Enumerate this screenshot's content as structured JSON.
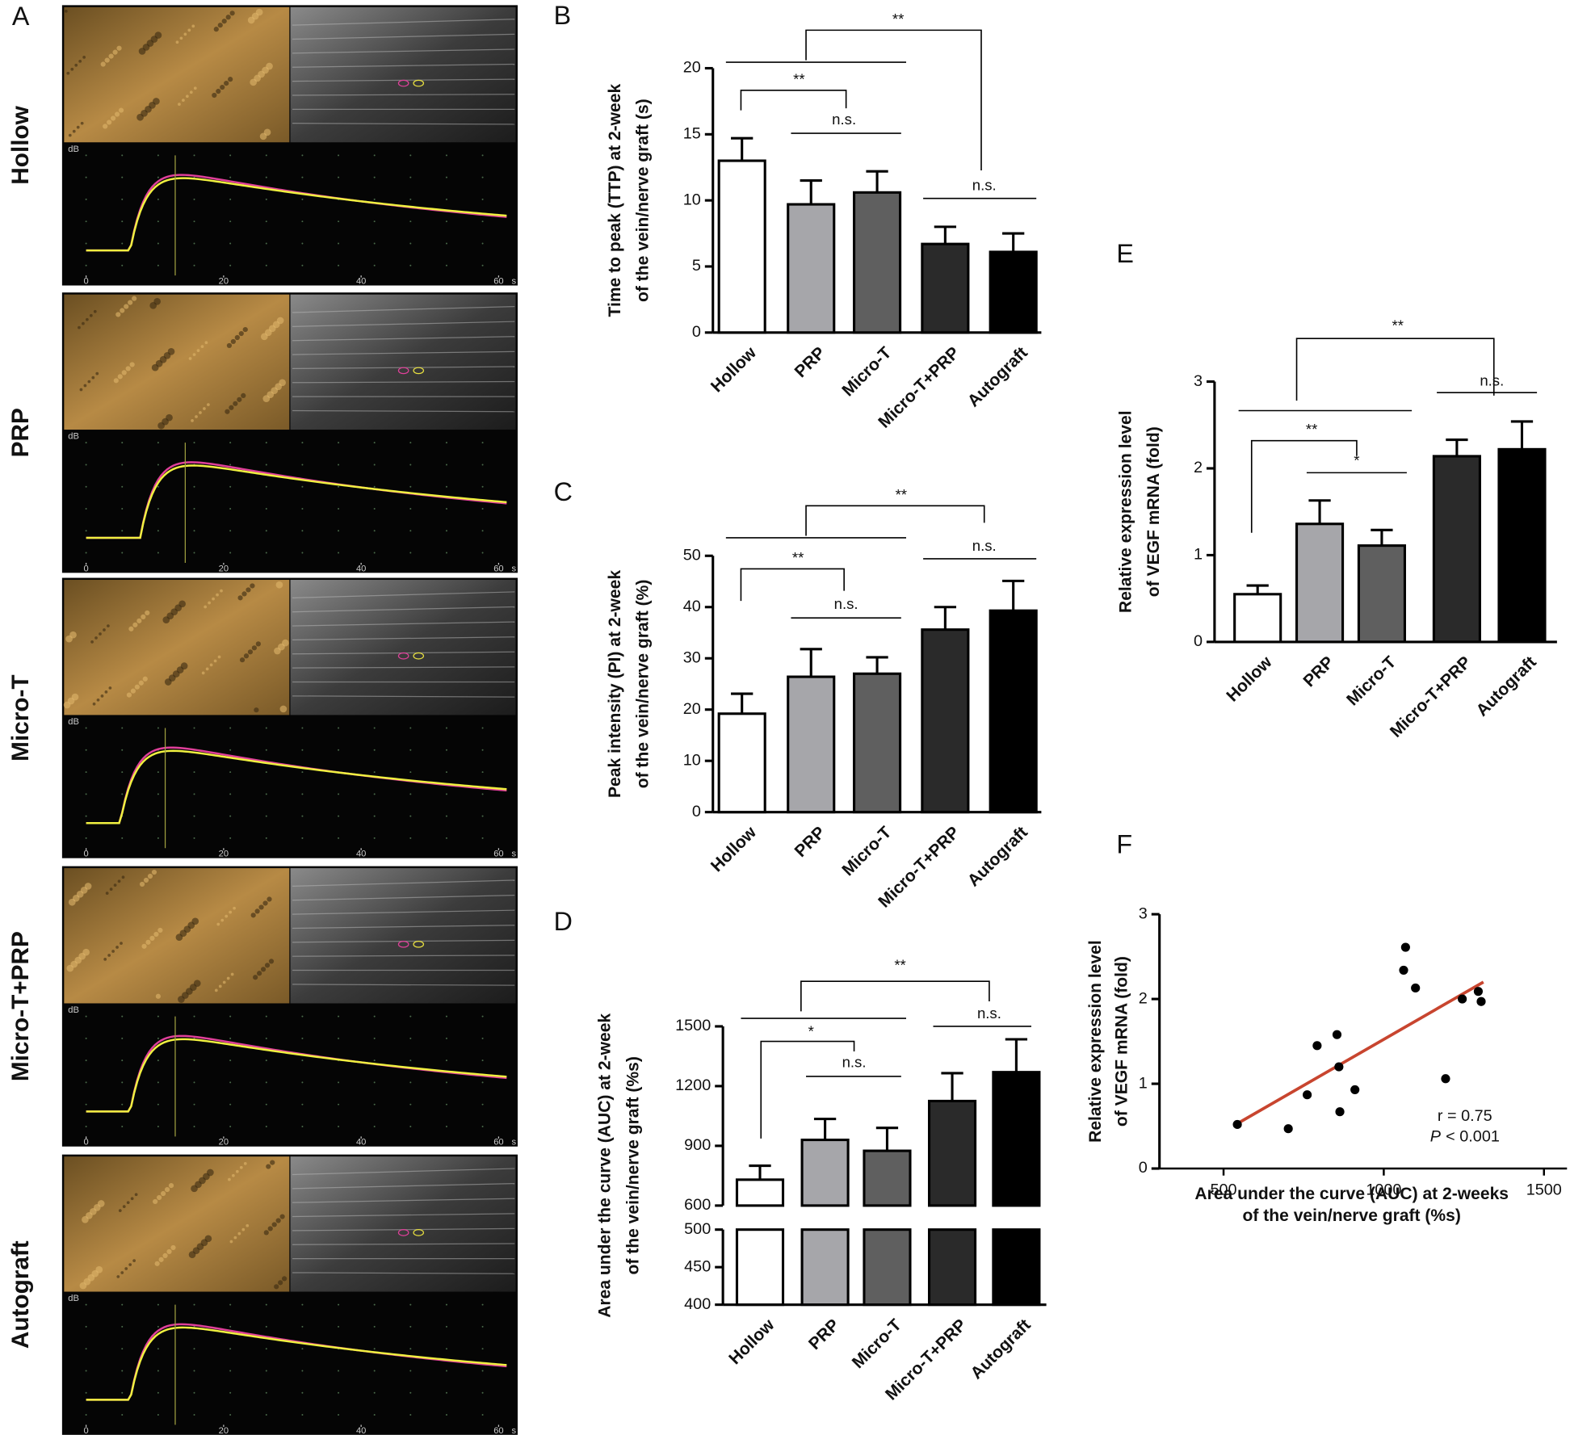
{
  "panel_a": {
    "letter": "A",
    "rows": [
      "Hollow",
      "PRP",
      "Micro-T",
      "Micro-T+PRP",
      "Autograft"
    ],
    "time_ticks": [
      0,
      20,
      40,
      60
    ],
    "time_unit": "s",
    "intensity_unit": "dB"
  },
  "chart_data": [
    {
      "type": "bar",
      "panel": "B",
      "ylabel": [
        "Time to peak (TTP) at 2-week",
        "of the vein/nerve graft (s)"
      ],
      "categories": [
        "Hollow",
        "PRP",
        "Micro-T",
        "Micro-T+PRP",
        "Autograft"
      ],
      "values": [
        13.0,
        9.7,
        10.6,
        6.7,
        6.1
      ],
      "errors": [
        1.7,
        1.8,
        1.6,
        1.3,
        1.4
      ],
      "colors": [
        "#ffffff",
        "#a6a6aa",
        "#5f5f5f",
        "#2a2a2a",
        "#000000"
      ],
      "ylim": [
        0,
        20
      ],
      "yticks": [
        0,
        5,
        10,
        15,
        20
      ],
      "annotations": [
        "**",
        "**",
        "n.s.",
        "n.s."
      ]
    },
    {
      "type": "bar",
      "panel": "C",
      "ylabel": [
        "Peak intensity (PI) at 2-week",
        "of the vein/nerve graft (%)"
      ],
      "categories": [
        "Hollow",
        "PRP",
        "Micro-T",
        "Micro-T+PRP",
        "Autograft"
      ],
      "values": [
        19.2,
        26.4,
        27.0,
        35.6,
        39.3
      ],
      "errors": [
        3.9,
        5.4,
        3.2,
        4.4,
        5.8
      ],
      "colors": [
        "#ffffff",
        "#a6a6aa",
        "#5f5f5f",
        "#2a2a2a",
        "#000000"
      ],
      "ylim": [
        0,
        50
      ],
      "yticks": [
        0,
        10,
        20,
        30,
        40,
        50
      ],
      "annotations": [
        "**",
        "**",
        "n.s.",
        "n.s."
      ]
    },
    {
      "type": "bar",
      "panel": "D",
      "ylabel": [
        "Area under the curve (AUC) at 2-week",
        "of the vein/nerve graft (%s)"
      ],
      "categories": [
        "Hollow",
        "PRP",
        "Micro-T",
        "Micro-T+PRP",
        "Autograft"
      ],
      "values": [
        730,
        930,
        875,
        1125,
        1270
      ],
      "errors": [
        70,
        105,
        115,
        140,
        165
      ],
      "colors": [
        "#ffffff",
        "#a6a6aa",
        "#5f5f5f",
        "#2a2a2a",
        "#000000"
      ],
      "ylim": [
        400,
        1500
      ],
      "axis_break": [
        500,
        600
      ],
      "yticks": [
        400,
        450,
        500,
        600,
        900,
        1200,
        1500
      ],
      "annotations": [
        "**",
        "*",
        "n.s.",
        "n.s."
      ]
    },
    {
      "type": "bar",
      "panel": "E",
      "ylabel": [
        "Relative expression level",
        "of VEGF mRNA (fold)"
      ],
      "categories": [
        "Hollow",
        "PRP",
        "Micro-T",
        "Micro-T+PRP",
        "Autograft"
      ],
      "values": [
        0.55,
        1.36,
        1.11,
        2.14,
        2.22
      ],
      "errors": [
        0.1,
        0.27,
        0.18,
        0.19,
        0.32
      ],
      "colors": [
        "#ffffff",
        "#a6a6aa",
        "#5f5f5f",
        "#2a2a2a",
        "#000000"
      ],
      "ylim": [
        0,
        3
      ],
      "yticks": [
        0,
        1,
        2,
        3
      ],
      "annotations": [
        "**",
        "**",
        "*",
        "n.s."
      ]
    },
    {
      "type": "scatter",
      "panel": "F",
      "ylabel": [
        "Relative expression level",
        "of VEGF mRNA (fold)"
      ],
      "xlabel": [
        "Area under the curve (AUC) at 2-weeks",
        "of the vein/nerve graft (%s)"
      ],
      "x": [
        543,
        702,
        761,
        792,
        854,
        860,
        863,
        910,
        1062,
        1068,
        1099,
        1193,
        1245,
        1295,
        1304
      ],
      "values": [
        0.52,
        0.47,
        0.87,
        1.45,
        1.58,
        1.2,
        0.67,
        0.93,
        2.34,
        2.61,
        2.13,
        1.06,
        2.0,
        2.09,
        1.97
      ],
      "color": "#000000",
      "fit": {
        "x": [
          543,
          1311
        ],
        "y": [
          0.53,
          2.2
        ],
        "color": "#c8452f"
      },
      "xlim": [
        300,
        1500
      ],
      "xticks": [
        500,
        1000,
        1500
      ],
      "ylim": [
        0,
        3
      ],
      "yticks": [
        0,
        1,
        2,
        3
      ],
      "stat": "r = 0.75",
      "p_symbol": "P",
      "p_value": "< 0.001"
    }
  ]
}
